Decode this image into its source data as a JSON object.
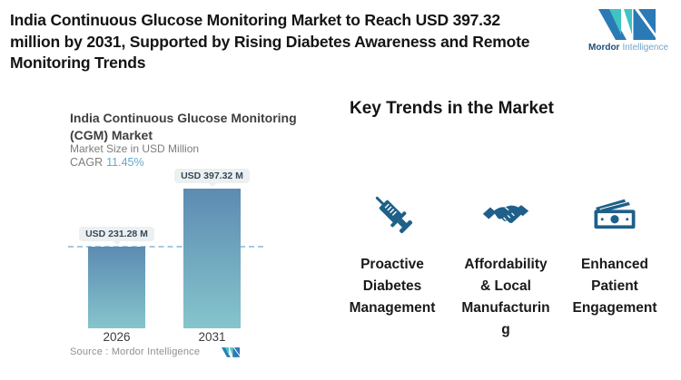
{
  "header": {
    "title_lines": [
      "India Continuous Glucose Monitoring Market to Reach USD 397.32",
      "million by 2031, Supported by Rising Diabetes Awareness and Remote",
      "Monitoring Trends"
    ],
    "logo": {
      "brand_bold": "Mordor",
      "brand_light": "Intelligence"
    }
  },
  "chart": {
    "title_lines": [
      "India Continuous Glucose Monitoring",
      "(CGM) Market"
    ],
    "subtitle": "Market Size in USD Million",
    "cagr_label": "CAGR",
    "cagr_value": "11.45%",
    "source_label": "Source :  Mordor Intelligence"
  },
  "chart_data": {
    "type": "bar",
    "title": "India Continuous Glucose Monitoring (CGM) Market",
    "ylabel": "Market Size in USD Million",
    "cagr": "11.45%",
    "categories": [
      "2026",
      "2031"
    ],
    "values": [
      231.28,
      397.32
    ],
    "value_labels": [
      "USD 231.28 M",
      "USD 397.32 M"
    ],
    "dashed_reference_value": 231.28,
    "ylim": [
      0,
      430
    ],
    "grid": false,
    "legend": "none",
    "bar_gradient": [
      "#5d8bb2",
      "#85c5cc"
    ]
  },
  "trends": {
    "heading": "Key Trends in the Market",
    "items": [
      {
        "icon": "syringe-icon",
        "label": "Proactive Diabetes Management",
        "lines": [
          "Proactive",
          "Diabetes",
          "Management"
        ]
      },
      {
        "icon": "handshake-icon",
        "label": "Affordability & Local Manufacturing",
        "lines": [
          "Affordability",
          "& Local",
          "Manufacturin",
          "g"
        ]
      },
      {
        "icon": "money-icon",
        "label": "Enhanced Patient Engagement",
        "lines": [
          "Enhanced",
          "Patient",
          "Engagement"
        ]
      }
    ]
  },
  "colors": {
    "header_text": "#141414",
    "chart_title": "#3f3f3f",
    "muted_text": "#7d7d7d",
    "cagr_value": "#64a9cf",
    "dashed_line": "#a5c9e5",
    "badge_bg": "#edf0f0",
    "badge_text": "#36495c",
    "bar_top": "#5d8bb2",
    "bar_bottom": "#85c5cc",
    "accent_icon": "#1e6089",
    "logo_teal": "#3fc4c1",
    "logo_blue": "#2b7ab6",
    "logo_text_dark": "#1d4b7c",
    "logo_text_light": "#74a3c9",
    "source_text": "#8b9196"
  }
}
